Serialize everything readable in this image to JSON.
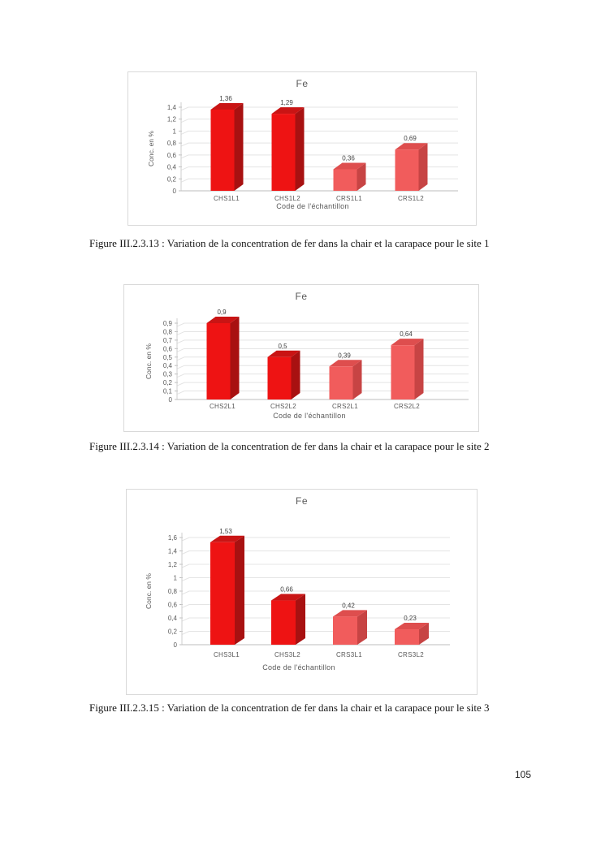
{
  "page": {
    "number": "105"
  },
  "captions": [
    "Figure III.2.3.13 : Variation de la concentration de fer dans la chair et la carapace pour le site 1",
    "Figure III.2.3.14 : Variation de la concentration de fer dans la chair et la carapace pour le site 2",
    "Figure III.2.3.15 : Variation de la concentration de fer dans la chair et la carapace pour le site 3"
  ],
  "colors": {
    "chair": {
      "front": "#ee1313",
      "top": "#c91414",
      "side": "#a81111"
    },
    "carapace": {
      "front": "#f15c5c",
      "top": "#de4e4e",
      "side": "#c74444"
    },
    "gridline": "#e4e4e4",
    "baseline": "#bdbdbd",
    "axis_line": "#cfcfcf",
    "tick": "#bdbdbd",
    "chart_text": "#595959",
    "value_text": "#3f3f3f",
    "box_border": "#d9d9d9"
  },
  "chart_data": [
    {
      "type": "bar",
      "title": "Fe",
      "xlabel": "Code de l'échantillon",
      "ylabel": "Conc. en %",
      "categories": [
        "CHS1L1",
        "CHS1L2",
        "CRS1L1",
        "CRS1L2"
      ],
      "values": [
        1.36,
        1.29,
        0.36,
        0.69
      ],
      "value_labels": [
        "1,36",
        "1,29",
        "0,36",
        "0,69"
      ],
      "bar_roles": [
        "chair",
        "chair",
        "carapace",
        "carapace"
      ],
      "ylim": [
        0,
        1.4
      ],
      "ytick_step": 0.2,
      "ytick_labels": [
        "0",
        "0,2",
        "0,4",
        "0,6",
        "0,8",
        "1",
        "1,2",
        "1,4"
      ],
      "grid": true,
      "legend": "none"
    },
    {
      "type": "bar",
      "title": "Fe",
      "xlabel": "Code de l'échantillon",
      "ylabel": "Conc. en %",
      "categories": [
        "CHS2L1",
        "CHS2L2",
        "CRS2L1",
        "CRS2L2"
      ],
      "values": [
        0.9,
        0.5,
        0.39,
        0.64
      ],
      "value_labels": [
        "0,9",
        "0,5",
        "0,39",
        "0,64"
      ],
      "bar_roles": [
        "chair",
        "chair",
        "carapace",
        "carapace"
      ],
      "ylim": [
        0,
        0.9
      ],
      "ytick_step": 0.1,
      "ytick_labels": [
        "0",
        "0,1",
        "0,2",
        "0,3",
        "0,4",
        "0,5",
        "0,6",
        "0,7",
        "0,8",
        "0,9"
      ],
      "grid": true,
      "legend": "none"
    },
    {
      "type": "bar",
      "title": "Fe",
      "xlabel": "Code de l'échantillon",
      "ylabel": "Conc. en %",
      "categories": [
        "CHS3L1",
        "CHS3L2",
        "CRS3L1",
        "CRS3L2"
      ],
      "values": [
        1.53,
        0.66,
        0.42,
        0.23
      ],
      "value_labels": [
        "1,53",
        "0,66",
        "0,42",
        "0,23"
      ],
      "bar_roles": [
        "chair",
        "chair",
        "carapace",
        "carapace"
      ],
      "ylim": [
        0,
        1.6
      ],
      "ytick_step": 0.2,
      "ytick_labels": [
        "0",
        "0,2",
        "0,4",
        "0,6",
        "0,8",
        "1",
        "1,2",
        "1,4",
        "1,6"
      ],
      "grid": true,
      "legend": "none"
    }
  ]
}
